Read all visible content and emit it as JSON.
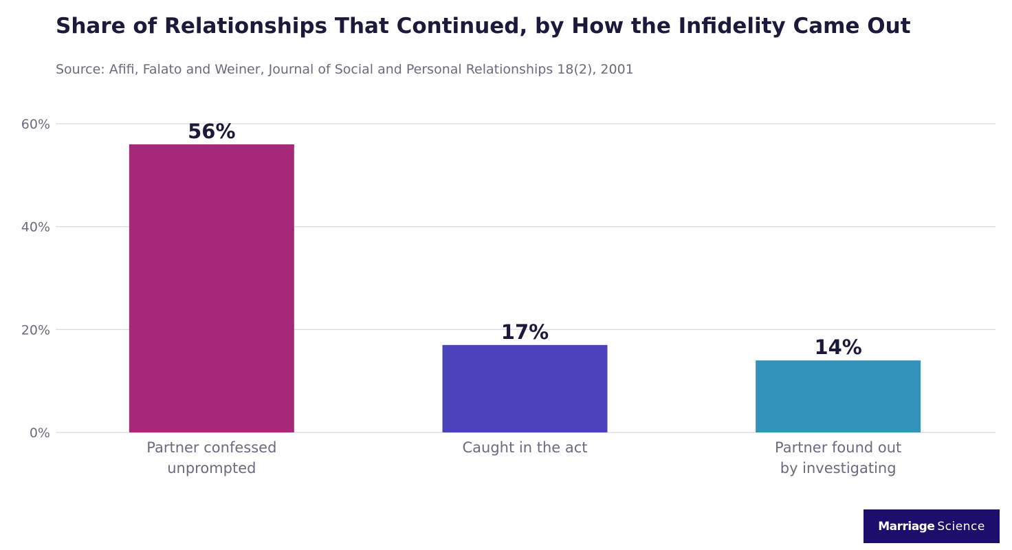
{
  "chart_data": {
    "type": "bar",
    "title": "Share of Relationships That Continued, by How the Infidelity Came Out",
    "subtitle": "Source: Afifi, Falato and Weiner, Journal of Social and Personal Relationships 18(2), 2001",
    "categories": [
      [
        "Partner confessed",
        "unprompted"
      ],
      [
        "Caught in the act"
      ],
      [
        "Partner found out",
        "by investigating"
      ]
    ],
    "values": [
      56,
      17,
      14
    ],
    "data_labels": [
      "56%",
      "17%",
      "14%"
    ],
    "colors": [
      "#a72778",
      "#4c42b9",
      "#3493bb"
    ],
    "y_ticks": [
      0,
      20,
      40,
      60
    ],
    "y_tick_labels": [
      "0%",
      "20%",
      "40%",
      "60%"
    ],
    "ylim": [
      0,
      60
    ],
    "xlabel": "",
    "ylabel": "",
    "grid": true,
    "legend": "none"
  },
  "brand": {
    "part1": "Marriage",
    "part2": "Science"
  }
}
